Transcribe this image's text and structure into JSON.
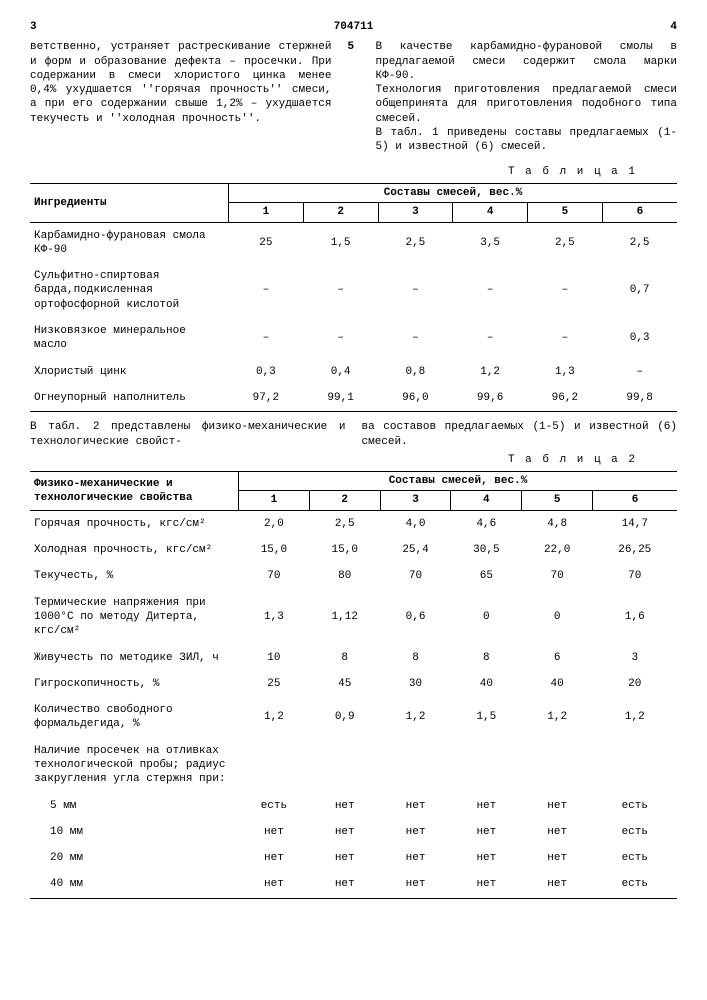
{
  "header": {
    "left_page": "3",
    "doc_id": "704711",
    "right_page": "4"
  },
  "para": {
    "left": "ветственно, устраняет растрескивание стержней и форм и образование дефек­та – просечки. При содержании в сме­си хлористого цинка менее 0,4% ухуд­шается ''горячая прочность'' смеси, а при его содержании свыше 1,2% – ухудшается текучесть и ''холодная прочность''.",
    "right1": "В качестве карбамидно-фурановой смолы в предлагаемой смеси содержит смола марки КФ-90.",
    "right2": "Технология приготовления предла­гаемой смеси общепринята для приго­товления подобного типа смесей.",
    "right3": "В табл. 1 приведены составы пред­лагаемых (1-5) и известной (6) смесей."
  },
  "row_marker": "5",
  "table1": {
    "title": "Т а б л и ц а  1",
    "head_ing": "Ингредиенты",
    "head_группа": "Составы смесей, вес.%",
    "cols": [
      "1",
      "2",
      "3",
      "4",
      "5",
      "6"
    ],
    "rows": [
      {
        "label": "Карбамидно-фурановая смола КФ-90",
        "vals": [
          "25",
          "1,5",
          "2,5",
          "3,5",
          "2,5",
          "2,5"
        ]
      },
      {
        "label": "Сульфитно-спиртовая барда,подкисленная ортофосфорной кис­лотой",
        "vals": [
          "–",
          "–",
          "–",
          "–",
          "–",
          "0,7"
        ]
      },
      {
        "label": "Низковязкое мине­ральное масло",
        "vals": [
          "–",
          "–",
          "–",
          "–",
          "–",
          "0,3"
        ]
      },
      {
        "label": "Хлористый цинк",
        "vals": [
          "0,3",
          "0,4",
          "0,8",
          "1,2",
          "1,3",
          "–"
        ]
      },
      {
        "label": "Огнеупорный напол­нитель",
        "vals": [
          "97,2",
          "99,1",
          "96,0",
          "99,6",
          "96,2",
          "99,8"
        ]
      }
    ]
  },
  "between": {
    "left": "В табл. 2 представлены физико-ме­ханические и технологические свойст-",
    "right": "ва составов предлагаемых (1-5) и из­вестной (6) смесей."
  },
  "table2": {
    "title": "Т а б л и ц а  2",
    "head_prop": "Физико-механические и технологические свойства",
    "head_группа": "Составы смесей, вес.%",
    "cols": [
      "1",
      "2",
      "3",
      "4",
      "5",
      "6"
    ],
    "rows": [
      {
        "label": "Горячая прочность, кгс/см²",
        "vals": [
          "2,0",
          "2,5",
          "4,0",
          "4,6",
          "4,8",
          "14,7"
        ]
      },
      {
        "label": "Холодная прочность, кгс/см²",
        "vals": [
          "15,0",
          "15,0",
          "25,4",
          "30,5",
          "22,0",
          "26,25"
        ]
      },
      {
        "label": "Текучесть, %",
        "vals": [
          "70",
          "80",
          "70",
          "65",
          "70",
          "70"
        ]
      },
      {
        "label": "Термические напряжения при 1000°С по методу Дитерта, кгс/см²",
        "vals": [
          "1,3",
          "1,12",
          "0,6",
          "0",
          "0",
          "1,6"
        ]
      },
      {
        "label": "Живучесть по методике ЗИЛ, ч",
        "vals": [
          "10",
          "8",
          "8",
          "8",
          "6",
          "3"
        ]
      },
      {
        "label": "Гигроскопичность, %",
        "vals": [
          "25",
          "45",
          "30",
          "40",
          "40",
          "20"
        ]
      },
      {
        "label": "Количество свободного формальдегида, %",
        "vals": [
          "1,2",
          "0,9",
          "1,2",
          "1,5",
          "1,2",
          "1,2"
        ]
      },
      {
        "label": "Наличие просечек на от­ливках технологической пробы; радиус закругле­ния угла стержня при:",
        "vals": [
          "",
          "",
          "",
          "",
          "",
          ""
        ]
      },
      {
        "label": "5 мм",
        "indent": true,
        "vals": [
          "есть",
          "нет",
          "нет",
          "нет",
          "нет",
          "есть"
        ]
      },
      {
        "label": "10 мм",
        "indent": true,
        "vals": [
          "нет",
          "нет",
          "нет",
          "нет",
          "нет",
          "есть"
        ]
      },
      {
        "label": "20 мм",
        "indent": true,
        "vals": [
          "нет",
          "нет",
          "нет",
          "нет",
          "нет",
          "есть"
        ]
      },
      {
        "label": "40 мм",
        "indent": true,
        "vals": [
          "нет",
          "нет",
          "нет",
          "нет",
          "нет",
          "есть"
        ]
      }
    ]
  }
}
